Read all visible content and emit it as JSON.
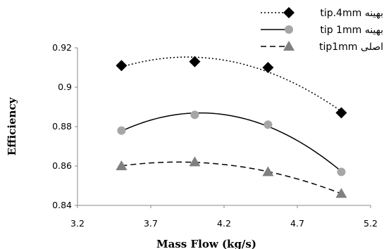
{
  "chart_data": {
    "type": "scatter",
    "xlabel": "Mass Flow (kg/s)",
    "ylabel": "Efficiency",
    "xlim": [
      3.2,
      5.2
    ],
    "ylim": [
      0.84,
      0.92
    ],
    "xticks": [
      "3.2",
      "3.7",
      "4.2",
      "4.7",
      "5.2"
    ],
    "yticks": [
      "0.84",
      "0.86",
      "0.88",
      "0.9",
      "0.92"
    ],
    "grid": false,
    "legend_position": "top-right",
    "series": [
      {
        "name": "tip.4mm بهینه",
        "marker": "diamond",
        "color": "#000000",
        "line": "dotted",
        "trend": "quadratic",
        "x": [
          3.5,
          4.0,
          4.5,
          5.0
        ],
        "y": [
          0.911,
          0.913,
          0.91,
          0.887
        ]
      },
      {
        "name": "tip 1mm بهینه",
        "marker": "circle",
        "color": "#a6a6a6",
        "line": "solid",
        "trend": "quadratic",
        "x": [
          3.5,
          4.0,
          4.5,
          5.0
        ],
        "y": [
          0.878,
          0.886,
          0.881,
          0.857
        ]
      },
      {
        "name": "tip1mm اصلی",
        "marker": "triangle",
        "color": "#808080",
        "line": "dashed",
        "trend": "quadratic",
        "x": [
          3.5,
          4.0,
          4.5,
          5.0
        ],
        "y": [
          0.86,
          0.862,
          0.857,
          0.846
        ]
      }
    ]
  }
}
